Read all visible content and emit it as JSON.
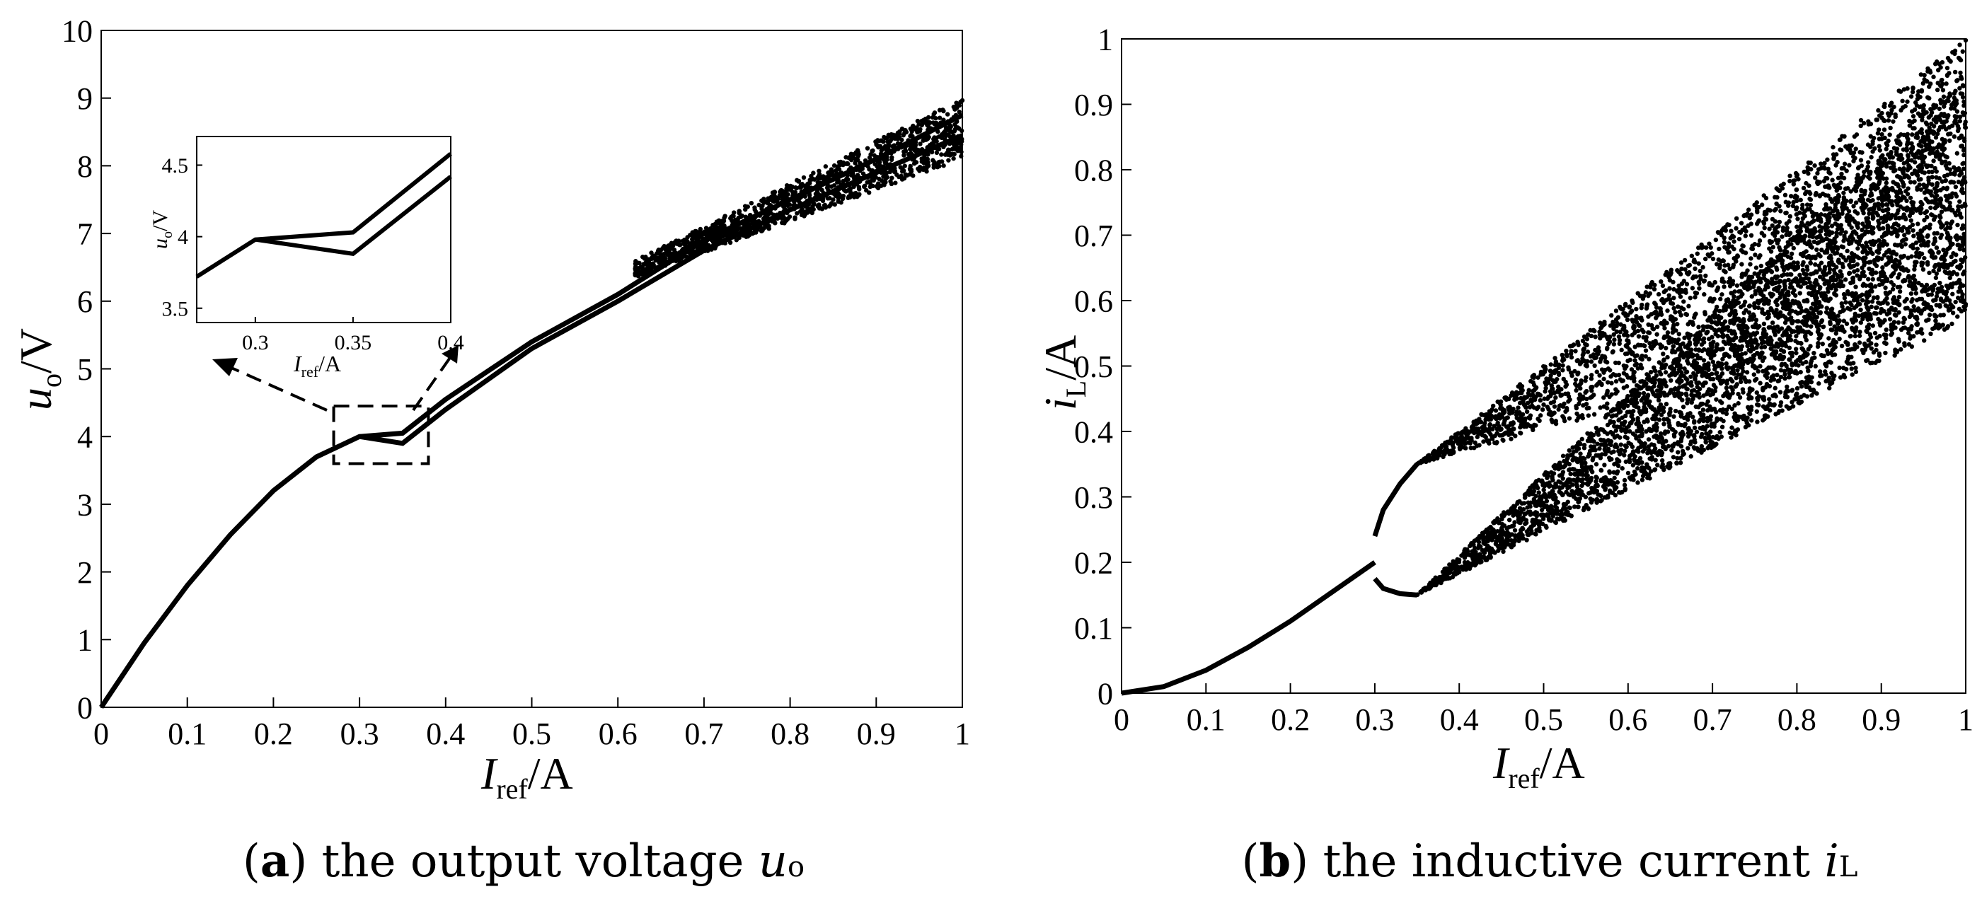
{
  "chart_data": [
    {
      "type": "scatter",
      "panel": "a",
      "x_var": "I",
      "x_sub": "ref",
      "x_unit": "/A",
      "y_var": "u",
      "y_sub": "o",
      "y_unit": "/V",
      "xlim": [
        0,
        1
      ],
      "ylim": [
        0,
        10
      ],
      "xticks": [
        "0",
        "0.1",
        "0.2",
        "0.3",
        "0.4",
        "0.5",
        "0.6",
        "0.7",
        "0.8",
        "0.9",
        "1"
      ],
      "yticks": [
        "0",
        "1",
        "2",
        "3",
        "4",
        "5",
        "6",
        "7",
        "8",
        "9",
        "10"
      ],
      "grid": false,
      "series": [
        {
          "name": "branch-upper",
          "x": [
            0,
            0.05,
            0.1,
            0.15,
            0.2,
            0.25,
            0.3,
            0.35,
            0.4,
            0.5,
            0.6,
            0.7,
            0.8,
            0.9,
            1.0
          ],
          "y": [
            0,
            0.95,
            1.8,
            2.55,
            3.2,
            3.7,
            4.0,
            4.05,
            4.55,
            5.4,
            6.1,
            6.9,
            7.5,
            8.1,
            8.75
          ]
        },
        {
          "name": "branch-lower",
          "x": [
            0.3,
            0.35,
            0.4,
            0.5,
            0.6,
            0.7,
            0.8,
            0.9,
            1.0
          ],
          "y": [
            4.0,
            3.9,
            4.4,
            5.3,
            6.0,
            6.75,
            7.35,
            7.9,
            8.45
          ]
        }
      ],
      "chaos_band": {
        "x_start": 0.62,
        "x_end": 1.0,
        "y_low_start": 6.35,
        "y_low_end": 8.1,
        "y_high_start": 6.6,
        "y_high_end": 9.0
      },
      "zoom_box": {
        "xlim": [
          0.27,
          0.38
        ],
        "ylim": [
          3.6,
          4.45
        ]
      },
      "inset": {
        "xlim": [
          0.27,
          0.4
        ],
        "ylim": [
          3.4,
          4.7
        ],
        "xticks": [
          "0.3",
          "0.35",
          "0.4"
        ],
        "yticks": [
          "3.5",
          "4",
          "4.5"
        ],
        "x_var": "I",
        "x_sub": "ref",
        "x_unit": "/A",
        "y_var": "u",
        "y_sub": "o",
        "y_unit": "/V",
        "series": [
          {
            "name": "inset-upper",
            "x": [
              0.27,
              0.3,
              0.35,
              0.4
            ],
            "y": [
              3.72,
              3.98,
              4.03,
              4.58
            ]
          },
          {
            "name": "inset-lower",
            "x": [
              0.3,
              0.35,
              0.4
            ],
            "y": [
              3.98,
              3.88,
              4.42
            ]
          }
        ]
      },
      "caption": {
        "letter": "a",
        "text": " the output voltage ",
        "var": "u",
        "sub": "o"
      }
    },
    {
      "type": "scatter",
      "panel": "b",
      "x_var": "I",
      "x_sub": "ref",
      "x_unit": "/A",
      "y_var": "i",
      "y_sub": "L",
      "y_unit": "/A",
      "xlim": [
        0,
        1
      ],
      "ylim": [
        0,
        1
      ],
      "xticks": [
        "0",
        "0.1",
        "0.2",
        "0.3",
        "0.4",
        "0.5",
        "0.6",
        "0.7",
        "0.8",
        "0.9",
        "1"
      ],
      "yticks": [
        "0",
        "0.1",
        "0.2",
        "0.3",
        "0.4",
        "0.5",
        "0.6",
        "0.7",
        "0.8",
        "0.9",
        "1"
      ],
      "grid": false,
      "series": [
        {
          "name": "period-1",
          "x": [
            0,
            0.05,
            0.1,
            0.15,
            0.2,
            0.25,
            0.3
          ],
          "y": [
            0,
            0.01,
            0.035,
            0.07,
            0.11,
            0.155,
            0.2
          ]
        },
        {
          "name": "upper-branch",
          "x": [
            0.3,
            0.31,
            0.33,
            0.35
          ],
          "y": [
            0.24,
            0.28,
            0.32,
            0.35
          ]
        },
        {
          "name": "lower-branch",
          "x": [
            0.3,
            0.31,
            0.33,
            0.35
          ],
          "y": [
            0.175,
            0.16,
            0.152,
            0.15
          ]
        }
      ],
      "chaos_bands": [
        {
          "name": "upper-band",
          "x_start": 0.35,
          "x_end": 1.0,
          "low_start": 0.35,
          "low_end": 0.57,
          "high_start": 0.35,
          "high_end": 1.0
        },
        {
          "name": "lower-band",
          "x_start": 0.35,
          "x_end": 1.0,
          "low_start": 0.15,
          "low_end": 0.57,
          "high_start": 0.15,
          "high_end": 0.95
        }
      ],
      "caption": {
        "letter": "b",
        "text": " the inductive current ",
        "var": "i",
        "sub": "L"
      }
    }
  ]
}
